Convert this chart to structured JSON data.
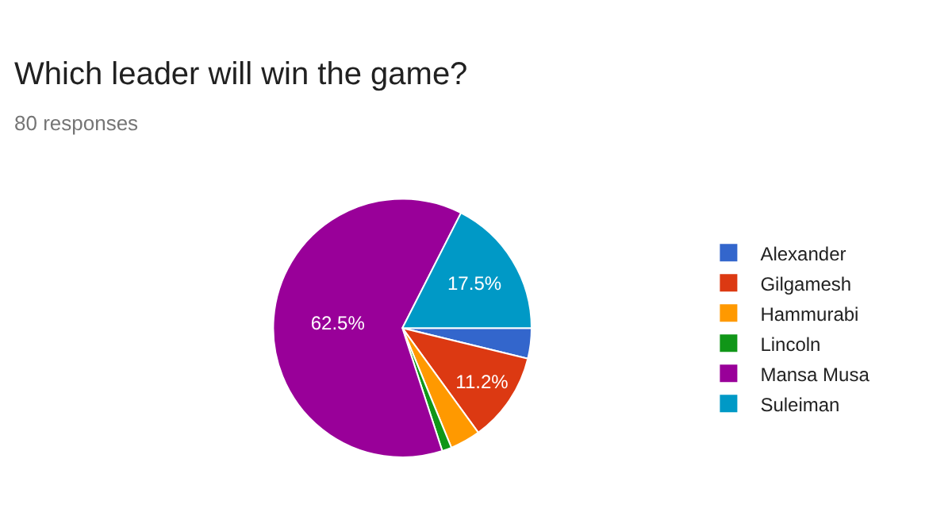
{
  "chart_data": {
    "type": "pie",
    "title": "Which leader will win the game?",
    "subtitle": "80 responses",
    "categories": [
      "Alexander",
      "Gilgamesh",
      "Hammurabi",
      "Lincoln",
      "Mansa Musa",
      "Suleiman"
    ],
    "values": [
      3.8,
      11.2,
      3.8,
      1.2,
      62.5,
      17.5
    ],
    "value_labels": [
      null,
      "11.2%",
      null,
      null,
      "62.5%",
      "17.5%"
    ],
    "colors": [
      "#3366cc",
      "#dc3912",
      "#ff9900",
      "#109618",
      "#990099",
      "#0099c6"
    ],
    "legend": "right"
  }
}
